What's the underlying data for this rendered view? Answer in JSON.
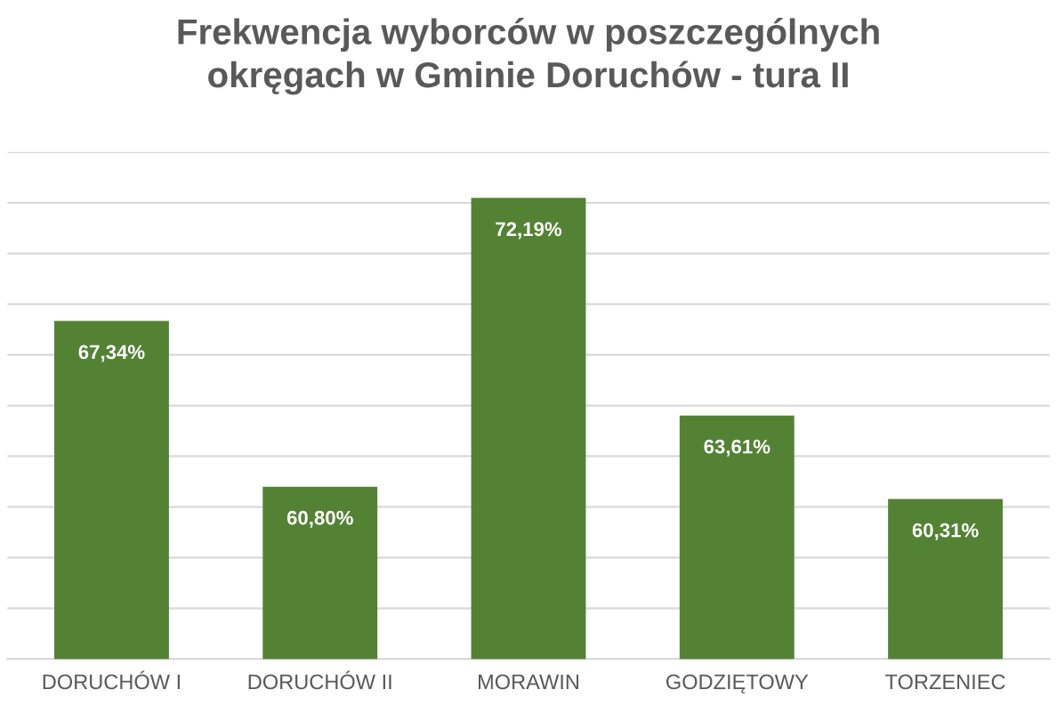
{
  "chart_data": {
    "type": "bar",
    "title": "Frekwencja wyborców w poszczególnych\nokręgach w Gminie Doruchów - tura II",
    "categories": [
      "DORUCHÓW I",
      "DORUCHÓW II",
      "MORAWIN",
      "GODZIĘTOWY",
      "TORZENIEC"
    ],
    "values": [
      67.34,
      60.8,
      72.19,
      63.61,
      60.31
    ],
    "value_labels": [
      "67,34%",
      "60,80%",
      "72,19%",
      "63,61%",
      "60,31%"
    ],
    "color": "#548235",
    "ylim": [
      54,
      74
    ],
    "yticks": [
      {
        "value": 54,
        "label": null
      },
      {
        "value": 56,
        "label": null
      },
      {
        "value": 58,
        "label": null
      },
      {
        "value": 60,
        "label": null
      },
      {
        "value": 62,
        "label": null
      },
      {
        "value": 64,
        "label": null
      },
      {
        "value": 66,
        "label": null
      },
      {
        "value": 68,
        "label": null
      },
      {
        "value": 70,
        "label": null
      },
      {
        "value": 72,
        "label": null
      },
      {
        "value": 74,
        "label": null
      }
    ],
    "grid": "y",
    "tick_labels": "x",
    "legend": false
  }
}
